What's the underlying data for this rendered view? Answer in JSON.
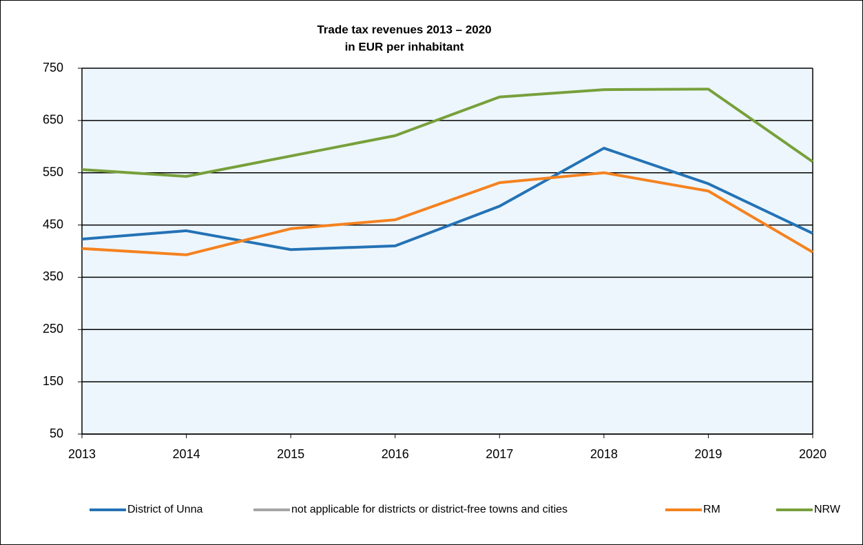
{
  "chart_data": {
    "type": "line",
    "title": "Trade tax revenues  2013 – 2020",
    "subtitle": "in EUR per inhabitant",
    "categories": [
      "2013",
      "2014",
      "2015",
      "2016",
      "2017",
      "2018",
      "2019",
      "2020"
    ],
    "series": [
      {
        "name": "District of Unna",
        "color": "#2472b5",
        "values": [
          423,
          439,
          403,
          410,
          486,
          597,
          529,
          434
        ]
      },
      {
        "name": "not applicable for districts or district-free towns and cities",
        "color": "#a5a5a5",
        "values": [
          null,
          null,
          null,
          null,
          null,
          null,
          null,
          null
        ]
      },
      {
        "name": "RM",
        "color": "#f5821f",
        "values": [
          405,
          393,
          443,
          460,
          531,
          550,
          515,
          398
        ]
      },
      {
        "name": "NRW",
        "color": "#77a03b",
        "values": [
          556,
          543,
          582,
          621,
          695,
          709,
          710,
          571
        ]
      }
    ],
    "ylim": [
      50,
      750
    ],
    "yticks": [
      50,
      150,
      250,
      350,
      450,
      550,
      650,
      750
    ],
    "grid": true
  }
}
